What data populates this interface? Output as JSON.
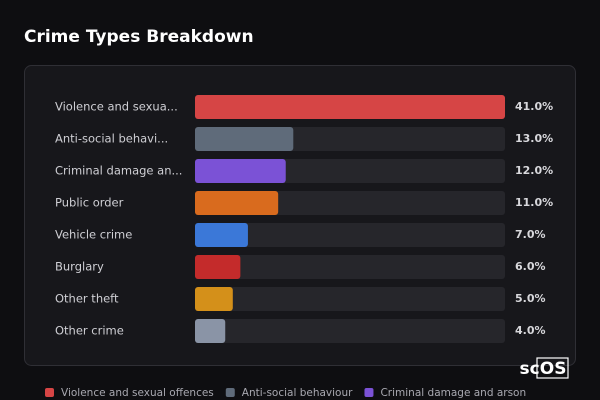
{
  "chart_data": {
    "type": "bar",
    "orientation": "horizontal",
    "title": "Crime Types Breakdown",
    "categories": [
      "Violence and sexua...",
      "Anti-social behavi...",
      "Criminal damage an...",
      "Public order",
      "Vehicle crime",
      "Burglary",
      "Other theft",
      "Other crime"
    ],
    "values": [
      41,
      13,
      12,
      11,
      7,
      6,
      5,
      4
    ],
    "value_labels": [
      "41.0%",
      "13.0%",
      "12.0%",
      "11.0%",
      "7.0%",
      "6.0%",
      "5.0%",
      "4.0%"
    ],
    "colors": [
      "#d64545",
      "#5f6b7a",
      "#7b52d6",
      "#d96b1e",
      "#3b78d8",
      "#c42b2b",
      "#d4901a",
      "#8a94a6"
    ],
    "xlim": [
      0,
      41
    ],
    "legend": [
      "Violence and sexual offences",
      "Anti-social behaviour",
      "Criminal damage and arson"
    ],
    "watermark": "scOS"
  }
}
